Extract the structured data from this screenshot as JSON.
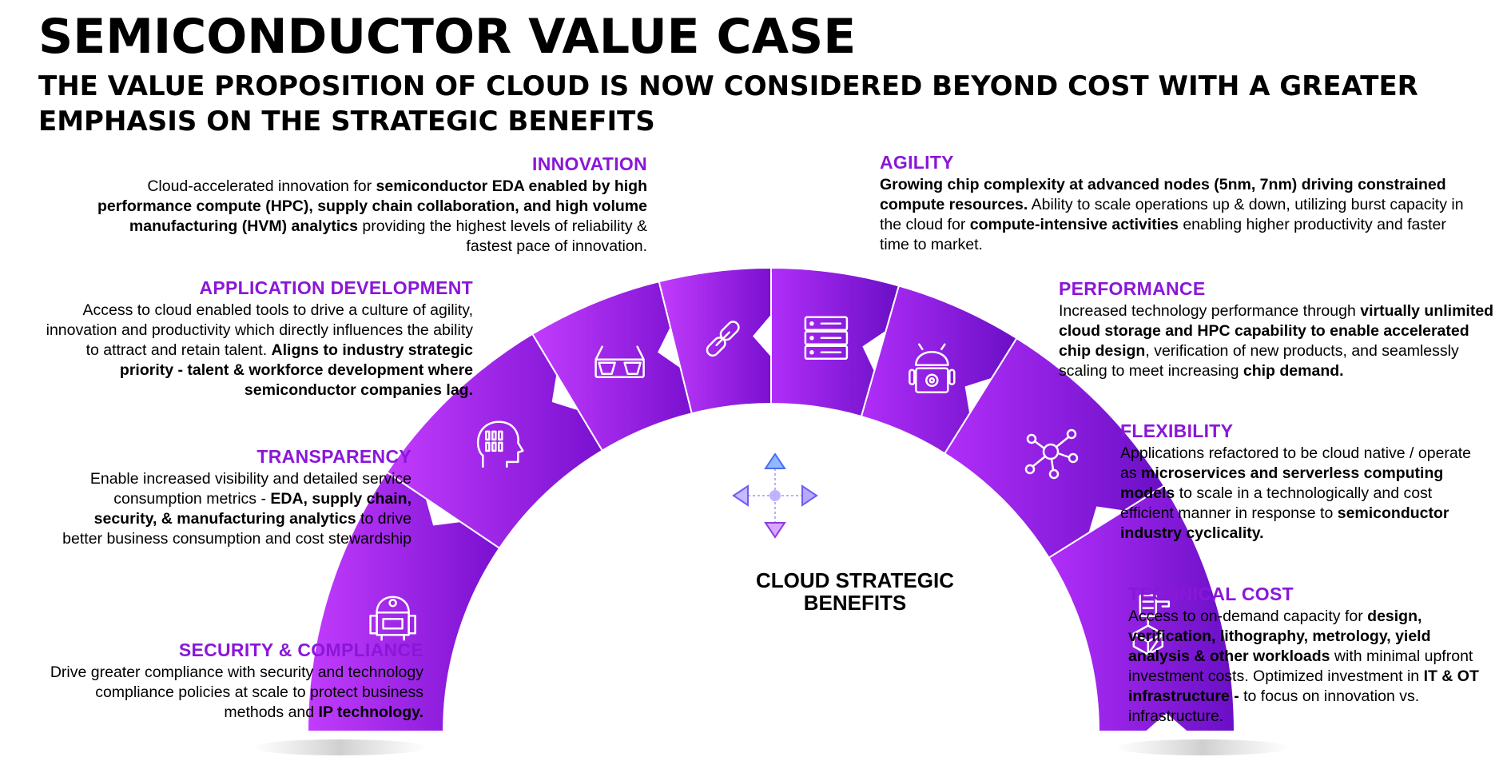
{
  "title": "SEMICONDUCTOR VALUE CASE",
  "subtitle": "THE VALUE PROPOSITION OF CLOUD IS NOW CONSIDERED BEYOND COST WITH A GREATER EMPHASIS ON THE STRATEGIC BENEFITS",
  "center": {
    "line1": "CLOUD STRATEGIC",
    "line2": "BENEFITS",
    "icon": "four-direction-arrows-icon"
  },
  "colors": {
    "accent": "#8a17d8",
    "segment_light": "#c23cfd",
    "segment_dark": "#6c0fc9",
    "text": "#000000"
  },
  "benefits": {
    "innovation": {
      "title": "INNOVATION",
      "icon": "link-icon",
      "segments": [
        {
          "t": "Cloud-accelerated innovation for ",
          "b": false
        },
        {
          "t": "semiconductor EDA enabled by high performance compute (HPC), supply chain collaboration, and high volume manufacturing (HVM) analytics",
          "b": true
        },
        {
          "t": " providing the highest levels of reliability & fastest pace of innovation.",
          "b": false
        }
      ]
    },
    "application_development": {
      "title": "APPLICATION DEVELOPMENT",
      "icon": "vr-glasses-icon",
      "segments": [
        {
          "t": "Access to cloud enabled tools to drive a culture of agility, innovation and productivity which directly influences the ability to attract and retain talent. ",
          "b": false
        },
        {
          "t": "Aligns to industry strategic priority - talent & workforce development where semiconductor companies lag.",
          "b": true
        }
      ]
    },
    "transparency": {
      "title": "TRANSPARENCY",
      "icon": "head-binary-icon",
      "segments": [
        {
          "t": "Enable increased visibility and detailed service consumption metrics - ",
          "b": false
        },
        {
          "t": "EDA, supply chain, security, & manufacturing analytics",
          "b": true
        },
        {
          "t": " to drive better business consumption and cost stewardship",
          "b": false
        }
      ]
    },
    "security_compliance": {
      "title": "SECURITY & COMPLIANCE",
      "icon": "robot-droid-icon",
      "segments": [
        {
          "t": "Drive greater compliance with security and technology compliance policies at scale to protect business methods and ",
          "b": false
        },
        {
          "t": "IP technology.",
          "b": true
        }
      ]
    },
    "agility": {
      "title": "AGILITY",
      "icon": "server-rack-icon",
      "segments": [
        {
          "t": "Growing chip complexity at advanced nodes (5nm, 7nm) driving constrained compute resources.",
          "b": true
        },
        {
          "t": " Ability to scale operations up & down, utilizing burst capacity in the cloud for ",
          "b": false
        },
        {
          "t": "compute-intensive activities",
          "b": true
        },
        {
          "t": " enabling higher productivity and faster time to market.",
          "b": false
        }
      ]
    },
    "performance": {
      "title": "PERFORMANCE",
      "icon": "android-gear-icon",
      "segments": [
        {
          "t": "Increased technology performance through ",
          "b": false
        },
        {
          "t": "virtually unlimited cloud storage and HPC capability to enable accelerated chip design",
          "b": true
        },
        {
          "t": ", verification of new products, and seamlessly scaling to meet increasing ",
          "b": false
        },
        {
          "t": "chip demand.",
          "b": true
        }
      ]
    },
    "flexibility": {
      "title": "FLEXIBILITY",
      "icon": "network-hub-icon",
      "segments": [
        {
          "t": "Applications refactored to be cloud native / operate as ",
          "b": false
        },
        {
          "t": "microservices and serverless computing models",
          "b": true
        },
        {
          "t": " to scale in a technologically and cost efficient manner in response to ",
          "b": false
        },
        {
          "t": "semiconductor industry cyclicality.",
          "b": true
        }
      ]
    },
    "technical_cost": {
      "title": "TECHNICAL COST",
      "icon": "robotic-arm-cube-icon",
      "segments": [
        {
          "t": "Access to on-demand capacity for ",
          "b": false
        },
        {
          "t": "design, verification, lithography, metrology, yield analysis & other workloads",
          "b": true
        },
        {
          "t": " with minimal upfront investment costs. Optimized investment in ",
          "b": false
        },
        {
          "t": "IT & OT infrastructure - ",
          "b": true
        },
        {
          "t": "to focus on innovation vs. infrastructure.",
          "b": false
        }
      ]
    }
  }
}
